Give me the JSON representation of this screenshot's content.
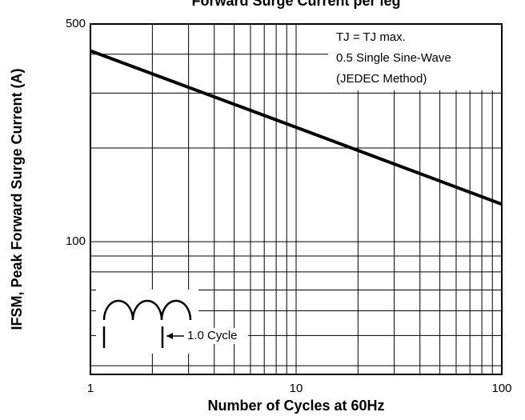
{
  "chart_data": {
    "type": "line",
    "title": "Forward Surge Current per leg",
    "x_label": "Number of Cycles at 60Hz",
    "y_label": "IFSM, Peak Forward Surge Current (A)",
    "annotations": [
      "TJ = TJ max.",
      "0.5 Single Sine-Wave",
      "(JEDEC Method)"
    ],
    "inset_label": "1.0 Cycle",
    "log_x": true,
    "log_y": true,
    "grid": true,
    "xlim": [
      1,
      100
    ],
    "xticks": [
      1,
      10,
      100
    ],
    "xminor": [
      2,
      3,
      4,
      5,
      6,
      7,
      8,
      9,
      20,
      30,
      40,
      50,
      60,
      70,
      80,
      90
    ],
    "ylim": [
      37.5,
      500
    ],
    "yticks": [
      100,
      500
    ],
    "yminor": [
      40,
      50,
      60,
      70,
      80,
      90,
      200,
      300,
      400
    ],
    "x": [
      1,
      10,
      100
    ],
    "series": [
      {
        "name": "IFSM",
        "color": "#000000",
        "values": [
          410,
          233,
          132
        ]
      }
    ]
  }
}
